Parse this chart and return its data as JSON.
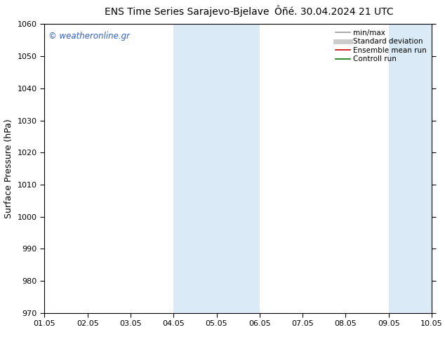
{
  "title_left": "ENS Time Series Sarajevo-Bjelave",
  "title_right": "Ôñé. 30.04.2024 21 UTC",
  "ylabel": "Surface Pressure (hPa)",
  "ylim": [
    970,
    1060
  ],
  "yticks": [
    970,
    980,
    990,
    1000,
    1010,
    1020,
    1030,
    1040,
    1050,
    1060
  ],
  "xtick_labels": [
    "01.05",
    "02.05",
    "03.05",
    "04.05",
    "05.05",
    "06.05",
    "07.05",
    "08.05",
    "09.05",
    "10.05"
  ],
  "xlim_start": 0,
  "xlim_end": 9,
  "shaded_bands": [
    {
      "xstart": 3.0,
      "xend": 4.0
    },
    {
      "xstart": 4.0,
      "xend": 5.0
    },
    {
      "xstart": 8.0,
      "xend": 9.0
    }
  ],
  "shade_color": "#daeaf7",
  "background_color": "#ffffff",
  "watermark": "© weatheronline.gr",
  "watermark_color": "#3060c0",
  "legend_entries": [
    {
      "label": "min/max",
      "color": "#999999",
      "lw": 1.2
    },
    {
      "label": "Standard deviation",
      "color": "#cccccc",
      "lw": 5
    },
    {
      "label": "Ensemble mean run",
      "color": "#cc0000",
      "lw": 1.2
    },
    {
      "label": "Controll run",
      "color": "#007700",
      "lw": 1.2
    }
  ],
  "title_fontsize": 10,
  "axis_label_fontsize": 9,
  "tick_fontsize": 8,
  "legend_fontsize": 7.5,
  "watermark_fontsize": 8.5
}
